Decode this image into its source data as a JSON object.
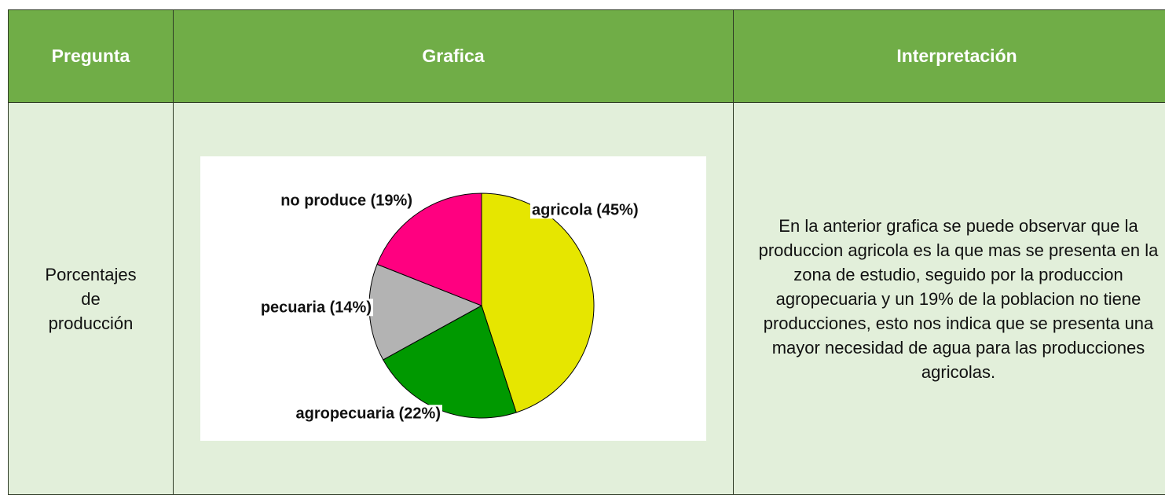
{
  "table": {
    "headers": [
      "Pregunta",
      "Grafica",
      "Interpretación"
    ],
    "rows": [
      [
        "Porcentajes de producción",
        null,
        "En la anterior grafica se puede observar que la produccion agricola es la que mas se presenta en la zona de estudio, seguido por la produccion agropecuaria y un 19% de la poblacion no tiene producciones, esto nos indica que se presenta una mayor necesidad de agua para las producciones agricolas."
      ]
    ]
  },
  "chart_data": {
    "type": "pie",
    "values": [
      45,
      22,
      14,
      19
    ],
    "value_labels": [
      "agricola (45%)",
      "agropecuaria (22%)",
      "pecuaria (14%)",
      "no produce (19%)"
    ],
    "colors": [
      "#e6e600",
      "#009900",
      "#b3b3b3",
      "#ff0080"
    ]
  }
}
